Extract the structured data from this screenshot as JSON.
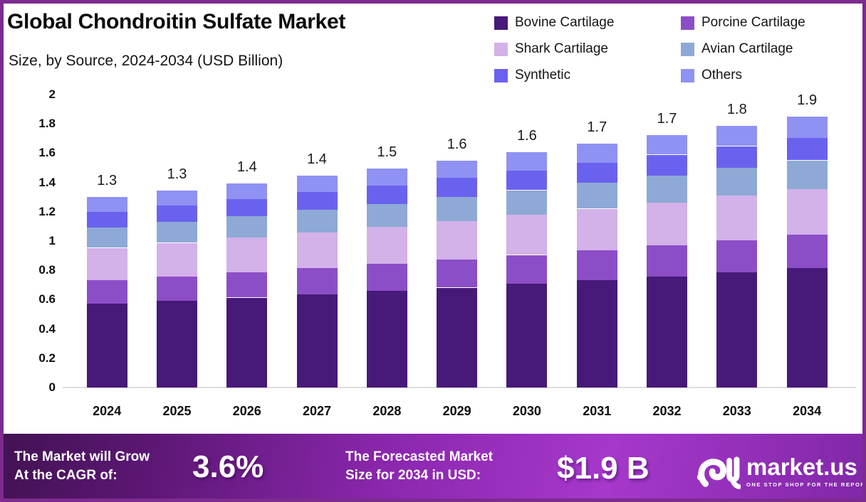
{
  "header": {
    "title": "Global Chondroitin Sulfate Market",
    "subtitle": "Size, by Source, 2024-2034 (USD Billion)"
  },
  "chart_data": {
    "type": "bar",
    "stacked": true,
    "title": "Global Chondroitin Sulfate Market Size, by Source, 2024-2034 (USD Billion)",
    "categories": [
      "2024",
      "2025",
      "2026",
      "2027",
      "2028",
      "2029",
      "2030",
      "2031",
      "2032",
      "2033",
      "2034"
    ],
    "series": [
      {
        "name": "Bovine Cartilage",
        "color": "#471979",
        "values": [
          0.573,
          0.593,
          0.614,
          0.636,
          0.659,
          0.682,
          0.707,
          0.733,
          0.759,
          0.786,
          0.814
        ]
      },
      {
        "name": "Porcine Cartilage",
        "color": "#8c4ec7",
        "values": [
          0.16,
          0.166,
          0.172,
          0.178,
          0.184,
          0.191,
          0.198,
          0.205,
          0.212,
          0.22,
          0.228
        ]
      },
      {
        "name": "Shark Cartilage",
        "color": "#d3b1e9",
        "values": [
          0.221,
          0.229,
          0.237,
          0.246,
          0.254,
          0.264,
          0.273,
          0.283,
          0.293,
          0.304,
          0.315
        ]
      },
      {
        "name": "Avian Cartilage",
        "color": "#8ea9d6",
        "values": [
          0.137,
          0.141,
          0.146,
          0.152,
          0.157,
          0.163,
          0.169,
          0.175,
          0.181,
          0.188,
          0.194
        ]
      },
      {
        "name": "Synthetic",
        "color": "#6a62ee",
        "values": [
          0.109,
          0.113,
          0.117,
          0.121,
          0.126,
          0.13,
          0.135,
          0.14,
          0.145,
          0.15,
          0.155
        ]
      },
      {
        "name": "Others",
        "color": "#8f92f2",
        "values": [
          0.101,
          0.105,
          0.109,
          0.113,
          0.117,
          0.121,
          0.125,
          0.13,
          0.135,
          0.139,
          0.144
        ]
      }
    ],
    "total_labels": [
      "1.3",
      "1.3",
      "1.4",
      "1.4",
      "1.5",
      "1.6",
      "1.6",
      "1.7",
      "1.7",
      "1.8",
      "1.9"
    ],
    "y_ticks": [
      "2",
      "1.8",
      "1.6",
      "1.4",
      "1.2",
      "1",
      "0.8",
      "0.6",
      "0.4",
      "0.2",
      "0"
    ],
    "ylim": [
      0,
      2
    ],
    "xlabel": "",
    "ylabel": "",
    "grid": false,
    "legend_position": "top-right"
  },
  "banner": {
    "cagr_label_line1": "The Market will Grow",
    "cagr_label_line2": "At the CAGR of:",
    "cagr_value": "3.6%",
    "forecast_label_line1": "The Forecasted Market",
    "forecast_label_line2": "Size for 2034 in USD:",
    "forecast_value": "$1.9 B",
    "logo_text": "market.us",
    "logo_tagline": "ONE STOP SHOP FOR THE REPORTS"
  },
  "colors": {
    "frame_border": "#7d2b8f",
    "axis_line": "#dddddd",
    "banner_gradient_start": "#421253",
    "banner_gradient_end": "#a638cc",
    "text": "#111111"
  }
}
